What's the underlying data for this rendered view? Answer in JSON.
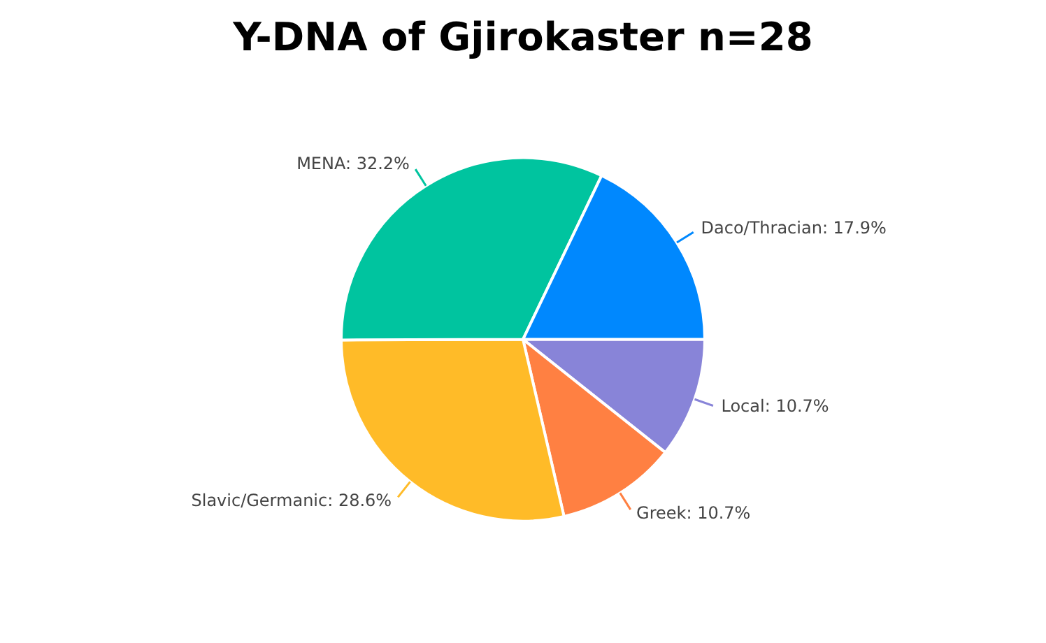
{
  "chart_data": {
    "type": "pie",
    "title": "Y-DNA of Gjirokaster n=28",
    "categories": [
      "Local",
      "Greek",
      "Slavic/Germanic",
      "MENA",
      "Daco/Thracian"
    ],
    "values": [
      10.7,
      10.7,
      28.6,
      32.2,
      17.9
    ],
    "value_labels": [
      "10.7%",
      "10.7%",
      "28.6%",
      "32.2%",
      "17.9%"
    ],
    "colors": [
      "#8884d8",
      "#ff8042",
      "#ffbb28",
      "#00c49f",
      "#0088fe"
    ],
    "legend": false
  }
}
